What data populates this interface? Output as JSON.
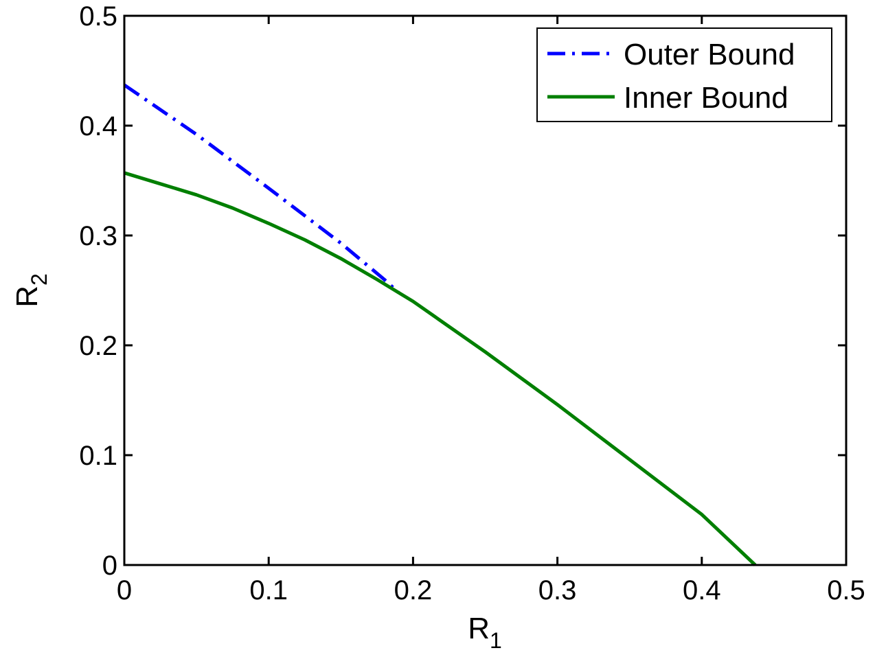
{
  "chart_data": {
    "type": "line",
    "xlabel": "R",
    "xlabel_sub": "1",
    "ylabel": "R",
    "ylabel_sub": "2",
    "xlim": [
      0,
      0.5
    ],
    "ylim": [
      0,
      0.5
    ],
    "xticks": [
      0,
      0.1,
      0.2,
      0.3,
      0.4,
      0.5
    ],
    "yticks": [
      0,
      0.1,
      0.2,
      0.3,
      0.4,
      0.5
    ],
    "xtick_labels": [
      "0",
      "0.1",
      "0.2",
      "0.3",
      "0.4",
      "0.5"
    ],
    "ytick_labels": [
      "0",
      "0.1",
      "0.2",
      "0.3",
      "0.4",
      "0.5"
    ],
    "grid": false,
    "legend_position": "top-right",
    "series": [
      {
        "name": "Outer Bound",
        "color": "#0000ff",
        "style": "dash-dot",
        "x": [
          0,
          0.05,
          0.1,
          0.15,
          0.18,
          0.19
        ],
        "y": [
          0.437,
          0.392,
          0.343,
          0.293,
          0.26,
          0.248
        ]
      },
      {
        "name": "Inner Bound",
        "color": "#007f00",
        "style": "solid",
        "x": [
          0,
          0.025,
          0.05,
          0.075,
          0.1,
          0.125,
          0.15,
          0.175,
          0.19,
          0.2,
          0.25,
          0.3,
          0.35,
          0.4,
          0.437
        ],
        "y": [
          0.357,
          0.347,
          0.337,
          0.325,
          0.311,
          0.296,
          0.279,
          0.26,
          0.248,
          0.24,
          0.194,
          0.146,
          0.096,
          0.046,
          0
        ]
      }
    ]
  }
}
